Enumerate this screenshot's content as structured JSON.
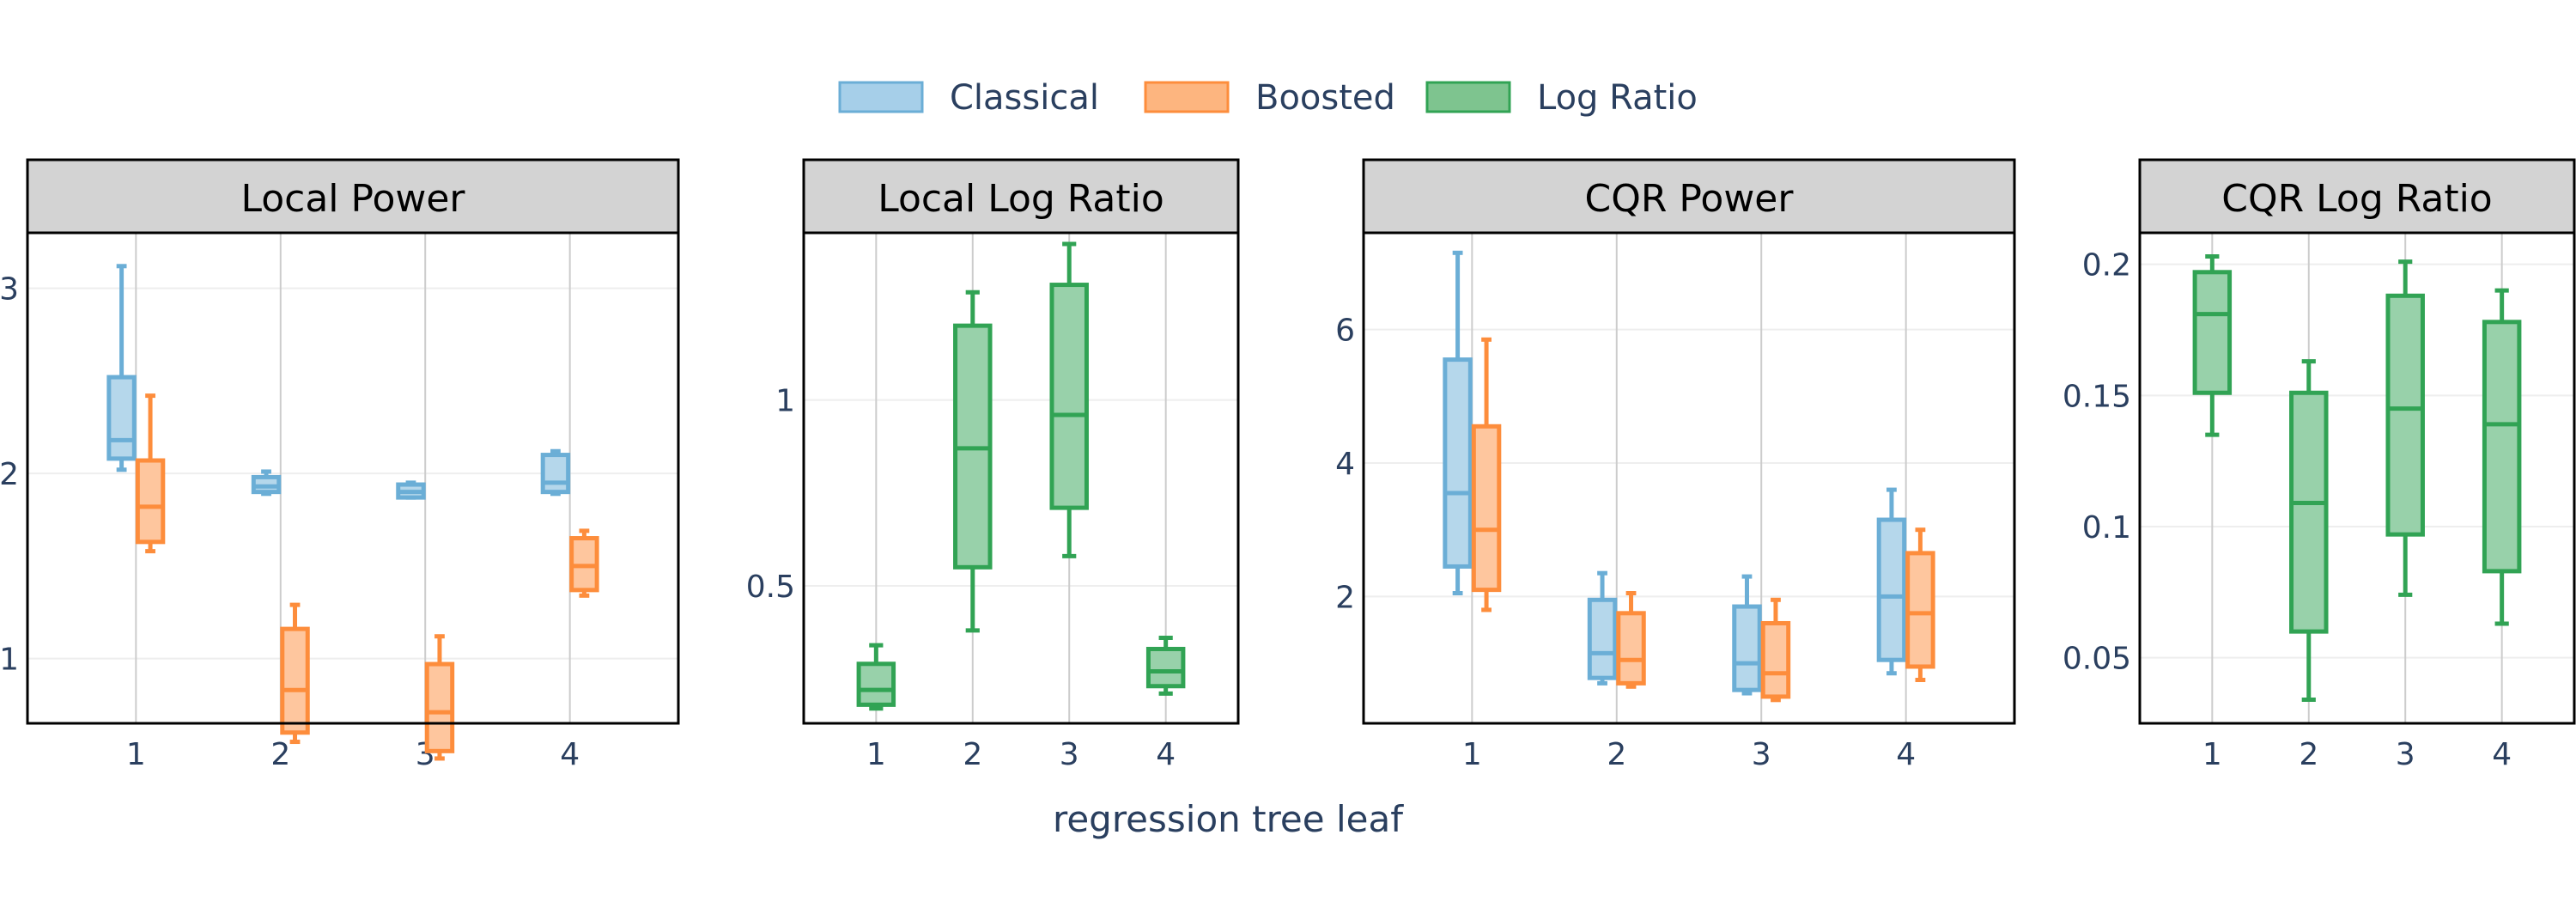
{
  "chart_data": {
    "type": "box",
    "xlabel": "regression tree leaf",
    "legend": {
      "position": "top-center",
      "entries": [
        {
          "name": "Classical",
          "color": "#6baed6"
        },
        {
          "name": "Boosted",
          "color": "#fd8d3c"
        },
        {
          "name": "Log Ratio",
          "color": "#31a354"
        }
      ]
    },
    "panels": [
      {
        "title": "Local Power",
        "categories": [
          "1",
          "2",
          "3",
          "4"
        ],
        "ylim": [
          0.65,
          3.3
        ],
        "yticks": [
          1,
          2,
          3
        ],
        "ytick_labels": [
          "1",
          "2",
          "3"
        ],
        "series": [
          {
            "name": "Classical",
            "boxes": [
              {
                "min": 2.02,
                "q1": 2.08,
                "median": 2.18,
                "q3": 2.52,
                "max": 3.12
              },
              {
                "min": 1.89,
                "q1": 1.9,
                "median": 1.93,
                "q3": 1.98,
                "max": 2.01
              },
              {
                "min": 1.87,
                "q1": 1.87,
                "median": 1.9,
                "q3": 1.94,
                "max": 1.95
              },
              {
                "min": 1.89,
                "q1": 1.9,
                "median": 1.95,
                "q3": 2.1,
                "max": 2.12
              }
            ]
          },
          {
            "name": "Boosted",
            "boxes": [
              {
                "min": 1.58,
                "q1": 1.63,
                "median": 1.82,
                "q3": 2.07,
                "max": 2.42
              },
              {
                "min": 0.55,
                "q1": 0.6,
                "median": 0.83,
                "q3": 1.16,
                "max": 1.29
              },
              {
                "min": 0.46,
                "q1": 0.5,
                "median": 0.71,
                "q3": 0.97,
                "max": 1.12
              },
              {
                "min": 1.34,
                "q1": 1.37,
                "median": 1.5,
                "q3": 1.65,
                "max": 1.69
              }
            ]
          }
        ]
      },
      {
        "title": "Local Log Ratio",
        "categories": [
          "1",
          "2",
          "3",
          "4"
        ],
        "ylim": [
          0.13,
          1.45
        ],
        "yticks": [
          0.5,
          1
        ],
        "ytick_labels": [
          "0.5",
          "1"
        ],
        "series": [
          {
            "name": "Log Ratio",
            "boxes": [
              {
                "min": 0.17,
                "q1": 0.18,
                "median": 0.22,
                "q3": 0.29,
                "max": 0.34
              },
              {
                "min": 0.38,
                "q1": 0.55,
                "median": 0.87,
                "q3": 1.2,
                "max": 1.29
              },
              {
                "min": 0.58,
                "q1": 0.71,
                "median": 0.96,
                "q3": 1.31,
                "max": 1.42
              },
              {
                "min": 0.21,
                "q1": 0.23,
                "median": 0.27,
                "q3": 0.33,
                "max": 0.36
              }
            ]
          }
        ]
      },
      {
        "title": "CQR Power",
        "categories": [
          "1",
          "2",
          "3",
          "4"
        ],
        "ylim": [
          0.1,
          7.45
        ],
        "yticks": [
          2,
          4,
          6
        ],
        "ytick_labels": [
          "2",
          "4",
          "6"
        ],
        "series": [
          {
            "name": "Classical",
            "boxes": [
              {
                "min": 2.05,
                "q1": 2.45,
                "median": 3.55,
                "q3": 5.55,
                "max": 7.15
              },
              {
                "min": 0.7,
                "q1": 0.78,
                "median": 1.15,
                "q3": 1.95,
                "max": 2.35
              },
              {
                "min": 0.55,
                "q1": 0.6,
                "median": 1.0,
                "q3": 1.85,
                "max": 2.3
              },
              {
                "min": 0.85,
                "q1": 1.05,
                "median": 2.0,
                "q3": 3.15,
                "max": 3.6
              }
            ]
          },
          {
            "name": "Boosted",
            "boxes": [
              {
                "min": 1.8,
                "q1": 2.1,
                "median": 3.0,
                "q3": 4.55,
                "max": 5.85
              },
              {
                "min": 0.65,
                "q1": 0.7,
                "median": 1.05,
                "q3": 1.75,
                "max": 2.05
              },
              {
                "min": 0.45,
                "q1": 0.5,
                "median": 0.85,
                "q3": 1.6,
                "max": 1.95
              },
              {
                "min": 0.75,
                "q1": 0.95,
                "median": 1.75,
                "q3": 2.65,
                "max": 3.0
              }
            ]
          }
        ]
      },
      {
        "title": "CQR Log Ratio",
        "categories": [
          "1",
          "2",
          "3",
          "4"
        ],
        "ylim": [
          0.025,
          0.212
        ],
        "yticks": [
          0.05,
          0.1,
          0.15,
          0.2
        ],
        "ytick_labels": [
          "0.05",
          "0.1",
          "0.15",
          "0.2"
        ],
        "series": [
          {
            "name": "Log Ratio",
            "boxes": [
              {
                "min": 0.135,
                "q1": 0.151,
                "median": 0.181,
                "q3": 0.197,
                "max": 0.203
              },
              {
                "min": 0.034,
                "q1": 0.06,
                "median": 0.109,
                "q3": 0.151,
                "max": 0.163
              },
              {
                "min": 0.074,
                "q1": 0.097,
                "median": 0.145,
                "q3": 0.188,
                "max": 0.201
              },
              {
                "min": 0.063,
                "q1": 0.083,
                "median": 0.139,
                "q3": 0.178,
                "max": 0.19
              }
            ]
          }
        ]
      }
    ]
  }
}
